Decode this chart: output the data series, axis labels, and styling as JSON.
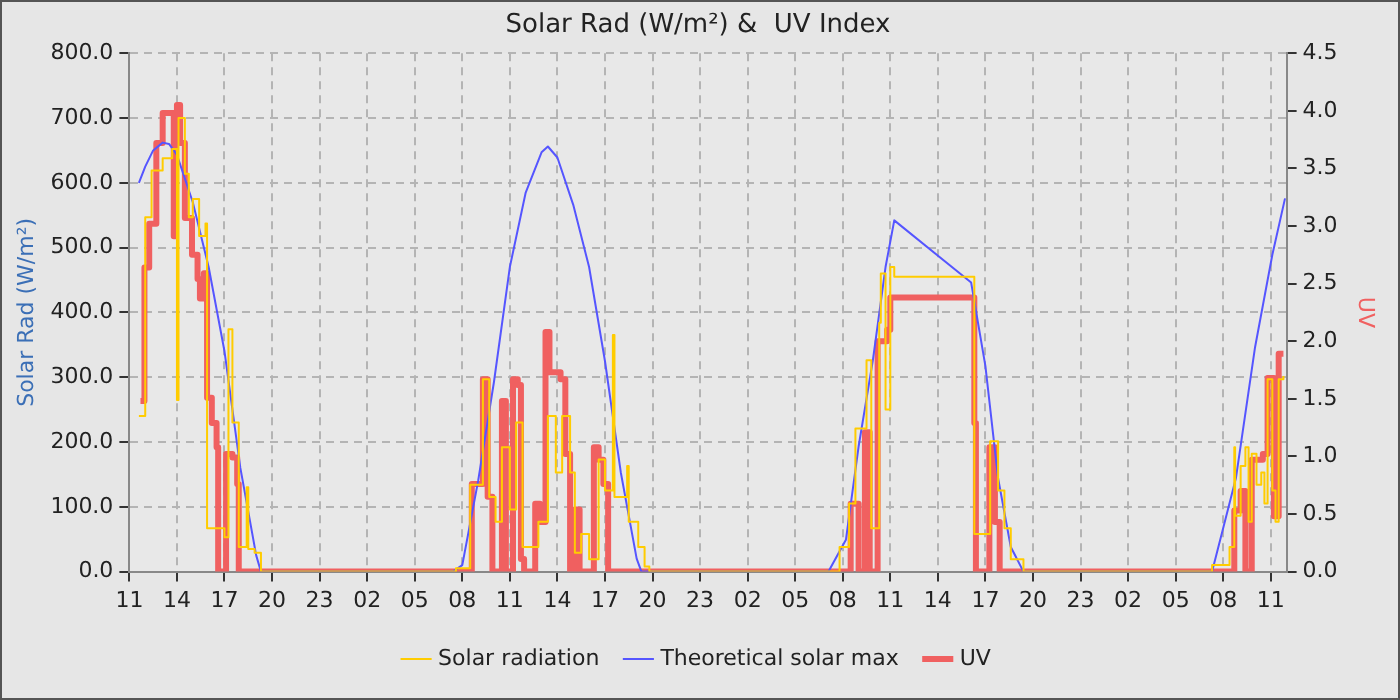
{
  "chart_data": {
    "type": "line",
    "title": "Solar Rad (W/m²) &  UV Index",
    "ylabel": "Solar Rad (W/m²)",
    "y2label": "UV",
    "xlim": [
      "--01-01T11:00",
      "--01-04T12:00"
    ],
    "xticks": [
      {
        "value": "--01-01T11:00",
        "label": "11"
      },
      {
        "value": "--01-01T14:00",
        "label": "14"
      },
      {
        "value": "--01-01T17:00",
        "label": "17"
      },
      {
        "value": "--01-01T20:00",
        "label": "20"
      },
      {
        "value": "--01-01T23:00",
        "label": "23"
      },
      {
        "value": "--01-02T02:00",
        "label": "02"
      },
      {
        "value": "--01-02T05:00",
        "label": "05"
      },
      {
        "value": "--01-02T08:00",
        "label": "08"
      },
      {
        "value": "--01-02T11:00",
        "label": "11"
      },
      {
        "value": "--01-02T14:00",
        "label": "14"
      },
      {
        "value": "--01-02T17:00",
        "label": "17"
      },
      {
        "value": "--01-02T20:00",
        "label": "20"
      },
      {
        "value": "--01-02T23:00",
        "label": "23"
      },
      {
        "value": "--01-03T02:00",
        "label": "02"
      },
      {
        "value": "--01-03T05:00",
        "label": "05"
      },
      {
        "value": "--01-03T08:00",
        "label": "08"
      },
      {
        "value": "--01-03T11:00",
        "label": "11"
      },
      {
        "value": "--01-03T14:00",
        "label": "14"
      },
      {
        "value": "--01-03T17:00",
        "label": "17"
      },
      {
        "value": "--01-03T20:00",
        "label": "20"
      },
      {
        "value": "--01-03T23:00",
        "label": "23"
      },
      {
        "value": "--01-04T02:00",
        "label": "02"
      },
      {
        "value": "--01-04T05:00",
        "label": "05"
      },
      {
        "value": "--01-04T08:00",
        "label": "08"
      },
      {
        "value": "--01-04T11:00",
        "label": "11"
      }
    ],
    "ylim": [
      0,
      800
    ],
    "yticks": [
      {
        "value": 0,
        "label": "0.0"
      },
      {
        "value": 100,
        "label": "100.0"
      },
      {
        "value": 200,
        "label": "200.0"
      },
      {
        "value": 300,
        "label": "300.0"
      },
      {
        "value": 400,
        "label": "400.0"
      },
      {
        "value": 500,
        "label": "500.0"
      },
      {
        "value": 600,
        "label": "600.0"
      },
      {
        "value": 700,
        "label": "700.0"
      },
      {
        "value": 800,
        "label": "800.0"
      }
    ],
    "y2lim": [
      0,
      4.5
    ],
    "y2ticks": [
      {
        "value": 0,
        "label": "0.0"
      },
      {
        "value": 0.5,
        "label": "0.5"
      },
      {
        "value": 1,
        "label": "1.0"
      },
      {
        "value": 1.5,
        "label": "1.5"
      },
      {
        "value": 2,
        "label": "2.0"
      },
      {
        "value": 2.5,
        "label": "2.5"
      },
      {
        "value": 3,
        "label": "3.0"
      },
      {
        "value": 3.5,
        "label": "3.5"
      },
      {
        "value": 4,
        "label": "4.0"
      },
      {
        "value": 4.5,
        "label": "4.5"
      }
    ],
    "grid": true,
    "legend": "bottom",
    "marker": "none",
    "series": [
      {
        "name": "Solar radiation",
        "type": "step",
        "color": "#ffcc00",
        "x": [
          "--01-01T11:36",
          "--01-01T12:00",
          "--01-01T12:24",
          "--01-01T13:06",
          "--01-01T13:42",
          "--01-01T14:00",
          "--01-01T14:06",
          "--01-01T14:30",
          "--01-01T14:45",
          "--01-01T15:00",
          "--01-01T15:24",
          "--01-01T15:48",
          "--01-01T15:54",
          "--01-01T17:00",
          "--01-01T17:15",
          "--01-01T17:30",
          "--01-01T17:54",
          "--01-01T18:24",
          "--01-01T18:30",
          "--01-01T18:54",
          "--01-01T19:18",
          "--01-02T07:36",
          "--01-02T08:30",
          "--01-02T09:18",
          "--01-02T09:42",
          "--01-02T10:06",
          "--01-02T10:30",
          "--01-02T11:00",
          "--01-02T11:24",
          "--01-02T11:48",
          "--01-02T12:48",
          "--01-02T13:24",
          "--01-02T13:54",
          "--01-02T14:18",
          "--01-02T14:48",
          "--01-02T15:06",
          "--01-02T15:30",
          "--01-02T16:00",
          "--01-02T16:36",
          "--01-02T17:00",
          "--01-02T17:30",
          "--01-02T17:36",
          "--01-02T18:24",
          "--01-02T18:30",
          "--01-02T19:06",
          "--01-02T19:30",
          "--01-02T19:48",
          "--01-03T07:06",
          "--01-03T07:48",
          "--01-03T08:24",
          "--01-03T08:48",
          "--01-03T09:30",
          "--01-03T09:48",
          "--01-03T10:18",
          "--01-03T10:24",
          "--01-03T10:42",
          "--01-03T11:00",
          "--01-03T11:15",
          "--01-03T16:18",
          "--01-03T17:18",
          "--01-03T17:48",
          "--01-03T18:12",
          "--01-03T18:36",
          "--01-03T19:24",
          "--01-04T07:18",
          "--01-04T08:24",
          "--01-04T08:42",
          "--01-04T08:45",
          "--01-04T09:06",
          "--01-04T09:24",
          "--01-04T09:36",
          "--01-04T09:48",
          "--01-04T10:06",
          "--01-04T10:24",
          "--01-04T10:36",
          "--01-04T10:48",
          "--01-04T11:06",
          "--01-04T11:18",
          "--01-04T11:30",
          "--01-04T11:48"
        ],
        "values": [
          240,
          547,
          619,
          638,
          652,
          265,
          700,
          614,
          547,
          575,
          518,
          537,
          67,
          53,
          374,
          230,
          38,
          130,
          35,
          29,
          0,
          5,
          134,
          297,
          115,
          77,
          192,
          96,
          230,
          38,
          77,
          240,
          153,
          240,
          153,
          29,
          58,
          19,
          173,
          125,
          365,
          115,
          163,
          77,
          38,
          8,
          0,
          0,
          38,
          105,
          221,
          326,
          67,
          384,
          460,
          250,
          470,
          455,
          58,
          201,
          125,
          67,
          19,
          0,
          10,
          38,
          192,
          86,
          163,
          192,
          77,
          182,
          134,
          153,
          105,
          297,
          125,
          77,
          297,
          302
        ]
      },
      {
        "name": "Theoretical solar max",
        "type": "line",
        "color": "#5555ff",
        "x": [
          "--01-01T11:36",
          "--01-01T12:00",
          "--01-01T12:30",
          "--01-01T13:06",
          "--01-01T13:30",
          "--01-01T14:00",
          "--01-01T15:00",
          "--01-01T16:00",
          "--01-01T17:00",
          "--01-01T18:00",
          "--01-01T19:00",
          "--01-01T19:18",
          "--01-02T07:24",
          "--01-02T08:00",
          "--01-02T09:00",
          "--01-02T10:00",
          "--01-02T11:00",
          "--01-02T12:00",
          "--01-02T13:00",
          "--01-02T13:24",
          "--01-02T14:00",
          "--01-02T15:00",
          "--01-02T16:00",
          "--01-02T17:00",
          "--01-02T18:00",
          "--01-02T19:00",
          "--01-02T19:18",
          "--01-03T07:06",
          "--01-03T08:12",
          "--01-03T09:00",
          "--01-03T09:54",
          "--01-03T10:42",
          "--01-03T11:15",
          "--01-03T16:06",
          "--01-03T17:00",
          "--01-03T17:48",
          "--01-03T18:36",
          "--01-03T19:24",
          "--01-04T07:18",
          "--01-04T08:48",
          "--01-04T10:00",
          "--01-04T11:06",
          "--01-04T11:54"
        ],
        "values": [
          600,
          625,
          650,
          662,
          660,
          643,
          570,
          470,
          340,
          160,
          25,
          0,
          0,
          10,
          140,
          293,
          470,
          585,
          647,
          656,
          639,
          566,
          470,
          325,
          153,
          20,
          0,
          0,
          49,
          193,
          326,
          470,
          542,
          446,
          317,
          144,
          38,
          0,
          0,
          144,
          345,
          489,
          576
        ]
      },
      {
        "name": "UV",
        "type": "step",
        "axis": "y2",
        "color": "#f06060",
        "x": [
          "--01-01T11:42",
          "--01-01T11:57",
          "--01-01T12:15",
          "--01-01T12:42",
          "--01-01T13:06",
          "--01-01T13:48",
          "--01-01T13:54",
          "--01-01T14:00",
          "--01-01T14:12",
          "--01-01T14:30",
          "--01-01T14:57",
          "--01-01T15:18",
          "--01-01T15:27",
          "--01-01T15:42",
          "--01-01T15:54",
          "--01-01T16:12",
          "--01-01T16:30",
          "--01-01T16:36",
          "--01-01T17:06",
          "--01-01T17:30",
          "--01-01T17:48",
          "--01-01T17:54",
          "--01-02T08:36",
          "--01-02T09:18",
          "--01-02T09:36",
          "--01-02T09:54",
          "--01-02T10:30",
          "--01-02T10:45",
          "--01-02T11:12",
          "--01-02T11:30",
          "--01-02T11:42",
          "--01-02T11:54",
          "--01-02T12:36",
          "--01-02T12:54",
          "--01-02T13:15",
          "--01-02T13:30",
          "--01-02T14:12",
          "--01-02T14:30",
          "--01-02T14:48",
          "--01-02T15:06",
          "--01-02T15:24",
          "--01-02T16:18",
          "--01-02T16:36",
          "--01-02T16:54",
          "--01-02T17:12",
          "--01-03T08:30",
          "--01-03T09:00",
          "--01-03T09:24",
          "--01-03T09:42",
          "--01-03T10:12",
          "--01-03T10:48",
          "--01-03T11:00",
          "--01-03T16:18",
          "--01-03T16:24",
          "--01-03T17:15",
          "--01-03T17:36",
          "--01-03T17:54",
          "--01-04T08:42",
          "--01-04T09:06",
          "--01-04T09:24",
          "--01-04T09:48",
          "--01-04T10:30",
          "--01-04T10:48",
          "--01-04T11:12",
          "--01-04T11:30",
          "--01-04T11:48"
        ],
        "values": [
          1.48,
          2.64,
          3.02,
          3.72,
          3.98,
          2.91,
          3.98,
          4.05,
          3.72,
          3.07,
          2.75,
          2.54,
          2.37,
          2.59,
          1.51,
          1.29,
          1.08,
          0,
          1.02,
          0.99,
          0.76,
          0,
          0.76,
          1.67,
          0.65,
          0,
          1.48,
          0,
          1.67,
          1.62,
          0.11,
          0,
          0.59,
          0.43,
          2.08,
          1.73,
          1.67,
          1.02,
          0,
          0.54,
          0,
          1.08,
          0.97,
          0.76,
          0,
          0.59,
          0,
          1.21,
          0,
          2.0,
          2.1,
          2.38,
          1.29,
          0,
          1.08,
          0.43,
          0,
          0.53,
          0.7,
          0,
          0.97,
          1.02,
          1.68,
          0.48,
          1.89,
          1.89
        ]
      }
    ]
  }
}
